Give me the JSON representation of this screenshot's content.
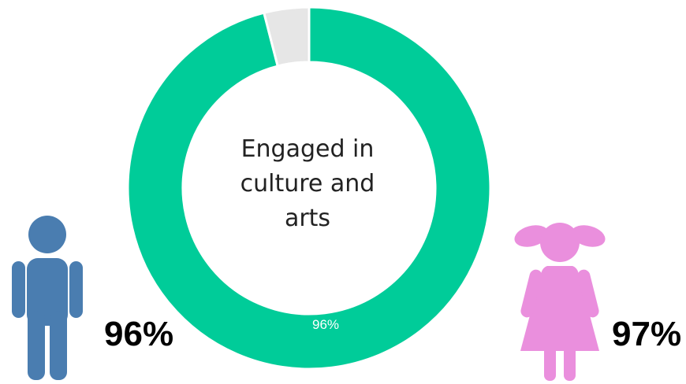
{
  "chart_data": {
    "type": "pie",
    "variant": "donut",
    "center_label": [
      "Engaged in",
      "culture and",
      "arts"
    ],
    "slices": [
      {
        "value": 96,
        "label": "96%",
        "color": "#00CC99"
      },
      {
        "value": 4,
        "label": "",
        "color": "#E6E6E6"
      }
    ]
  },
  "groups": [
    {
      "icon": "boy-icon",
      "value_label": "96%",
      "color": "#4A7DB0"
    },
    {
      "icon": "girl-icon",
      "value_label": "97%",
      "color": "#EA8FDD"
    }
  ]
}
